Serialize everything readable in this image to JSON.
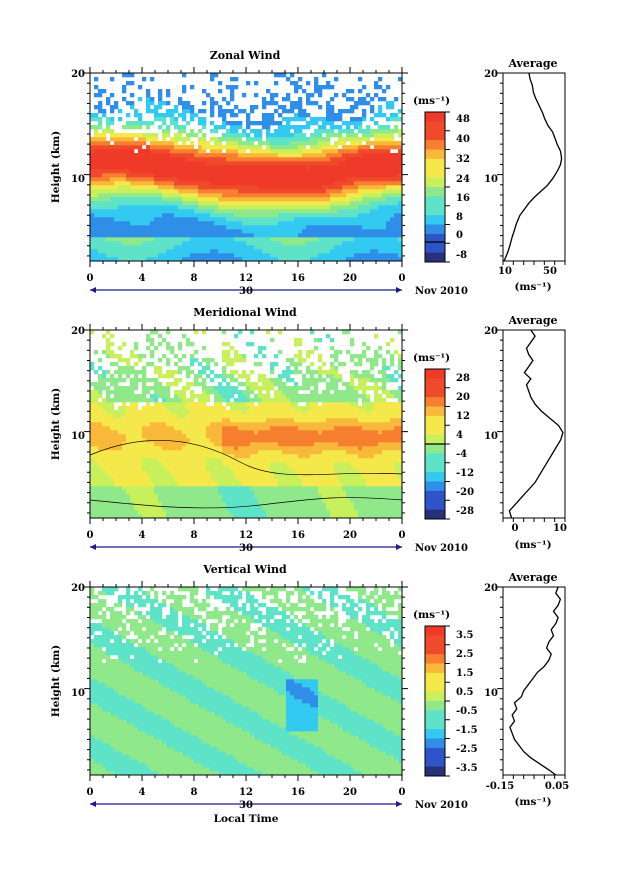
{
  "chart_data": [
    {
      "type": "heatmap",
      "title": "Zonal Wind",
      "ylabel": "Height (km)",
      "xlabel": "",
      "units": "(ms⁻¹)",
      "date_label": "Nov 2010",
      "day_label": "30",
      "x_ticks": [
        "0",
        "4",
        "8",
        "12",
        "16",
        "20",
        "0"
      ],
      "y_ticks": [
        "10",
        "20"
      ],
      "ylim": [
        1.5,
        20
      ],
      "xlim": [
        0,
        24
      ],
      "colorbar_ticks": [
        "48",
        "40",
        "32",
        "24",
        "16",
        "8",
        "0",
        "-8"
      ],
      "colorbar_range": [
        -8,
        52
      ],
      "zero_line": 0,
      "profile": {
        "title": "Average",
        "xlabel": "(ms⁻¹)",
        "x_ticks": [
          "10",
          "50"
        ],
        "xlim": [
          5,
          60
        ],
        "y_ticks": [
          "10",
          "20"
        ],
        "points": [
          [
            6,
            1.5
          ],
          [
            9,
            2.3
          ],
          [
            11,
            3
          ],
          [
            13,
            3.8
          ],
          [
            15,
            4.5
          ],
          [
            17,
            5.2
          ],
          [
            20,
            6
          ],
          [
            24,
            6.6
          ],
          [
            28,
            7.2
          ],
          [
            33,
            7.8
          ],
          [
            38,
            8.3
          ],
          [
            44,
            8.9
          ],
          [
            49,
            9.6
          ],
          [
            53,
            10.3
          ],
          [
            56,
            11
          ],
          [
            57,
            11.6
          ],
          [
            56,
            12.3
          ],
          [
            53,
            13
          ],
          [
            51,
            13.6
          ],
          [
            49,
            14.2
          ],
          [
            45,
            14.8
          ],
          [
            42,
            15.5
          ],
          [
            40,
            16.1
          ],
          [
            37,
            16.8
          ],
          [
            34,
            17.5
          ],
          [
            32,
            18.1
          ],
          [
            31,
            18.8
          ],
          [
            29,
            19.4
          ],
          [
            28,
            20
          ]
        ]
      }
    },
    {
      "type": "heatmap",
      "title": "Meridional Wind",
      "ylabel": "Height (km)",
      "xlabel": "",
      "units": "(ms⁻¹)",
      "date_label": "Nov 2010",
      "day_label": "30",
      "x_ticks": [
        "0",
        "4",
        "8",
        "12",
        "16",
        "20",
        "0"
      ],
      "y_ticks": [
        "10",
        "20"
      ],
      "ylim": [
        1.5,
        20
      ],
      "xlim": [
        0,
        24
      ],
      "colorbar_ticks": [
        "28",
        "20",
        "12",
        "4",
        "-4",
        "-12",
        "-20",
        "-28"
      ],
      "colorbar_range": [
        -32,
        32
      ],
      "zero_line": 0,
      "profile": {
        "title": "Average",
        "xlabel": "(ms⁻¹)",
        "x_ticks": [
          "0",
          "10"
        ],
        "xlim": [
          -3,
          11.5
        ],
        "y_ticks": [
          "10",
          "20"
        ],
        "points": [
          [
            -1,
            1.5
          ],
          [
            -1.5,
            2.2
          ],
          [
            0,
            2.9
          ],
          [
            1.5,
            3.6
          ],
          [
            3,
            4.3
          ],
          [
            4.5,
            5
          ],
          [
            5.5,
            5.7
          ],
          [
            6.5,
            6.4
          ],
          [
            7.5,
            7.1
          ],
          [
            8.5,
            7.8
          ],
          [
            9.5,
            8.5
          ],
          [
            10.5,
            9.2
          ],
          [
            11,
            9.9
          ],
          [
            10,
            10.6
          ],
          [
            8,
            11.3
          ],
          [
            6,
            12
          ],
          [
            4.5,
            12.7
          ],
          [
            3.5,
            13.4
          ],
          [
            3,
            14
          ],
          [
            2.5,
            14.6
          ],
          [
            3.5,
            15.2
          ],
          [
            2,
            15.8
          ],
          [
            3,
            16.4
          ],
          [
            4,
            17
          ],
          [
            3,
            17.6
          ],
          [
            2.5,
            18.2
          ],
          [
            3.5,
            18.8
          ],
          [
            4.5,
            19.4
          ],
          [
            3.5,
            20
          ]
        ]
      }
    },
    {
      "type": "heatmap",
      "title": "Vertical Wind",
      "ylabel": "Height (km)",
      "xlabel": "Local Time",
      "units": "(ms⁻¹)",
      "date_label": "Nov 2010",
      "day_label": "30",
      "x_ticks": [
        "0",
        "4",
        "8",
        "12",
        "16",
        "20",
        "0"
      ],
      "y_ticks": [
        "10",
        "20"
      ],
      "ylim": [
        1.5,
        20
      ],
      "xlim": [
        0,
        24
      ],
      "colorbar_ticks": [
        "3.5",
        "2.5",
        "1.5",
        "0.5",
        "-0.5",
        "-1.5",
        "-2.5",
        "-3.5"
      ],
      "colorbar_range": [
        -4,
        4
      ],
      "zero_line": null,
      "profile": {
        "title": "Average",
        "xlabel": "(ms⁻¹)",
        "x_ticks": [
          "-0.15",
          "0.05"
        ],
        "xlim": [
          -0.19,
          0.08
        ],
        "y_ticks": [
          "10",
          "20"
        ],
        "points": [
          [
            0.04,
            1.5
          ],
          [
            0.01,
            2
          ],
          [
            -0.03,
            2.6
          ],
          [
            -0.07,
            3.2
          ],
          [
            -0.1,
            3.8
          ],
          [
            -0.12,
            4.4
          ],
          [
            -0.14,
            5
          ],
          [
            -0.15,
            5.6
          ],
          [
            -0.16,
            6.2
          ],
          [
            -0.14,
            6.8
          ],
          [
            -0.15,
            7.4
          ],
          [
            -0.13,
            8
          ],
          [
            -0.14,
            8.6
          ],
          [
            -0.11,
            9.2
          ],
          [
            -0.1,
            9.8
          ],
          [
            -0.08,
            10.4
          ],
          [
            -0.06,
            11
          ],
          [
            -0.04,
            11.6
          ],
          [
            -0.01,
            12.2
          ],
          [
            0.01,
            12.8
          ],
          [
            0.02,
            13.4
          ],
          [
            0,
            14
          ],
          [
            0.01,
            14.6
          ],
          [
            0.03,
            15.2
          ],
          [
            0.02,
            15.8
          ],
          [
            0.04,
            16.4
          ],
          [
            0.05,
            17
          ],
          [
            0.03,
            17.6
          ],
          [
            0.05,
            18.2
          ],
          [
            0.06,
            18.8
          ],
          [
            0.04,
            19.4
          ],
          [
            0.05,
            20
          ]
        ]
      }
    }
  ],
  "palette": [
    "#2a2f7a",
    "#2d55c8",
    "#2f8fe8",
    "#33c9f0",
    "#5fe3c8",
    "#8fe88a",
    "#c7f05c",
    "#f5e84a",
    "#f8b93a",
    "#f67f30",
    "#f04a2c",
    "#ef3a2a"
  ]
}
